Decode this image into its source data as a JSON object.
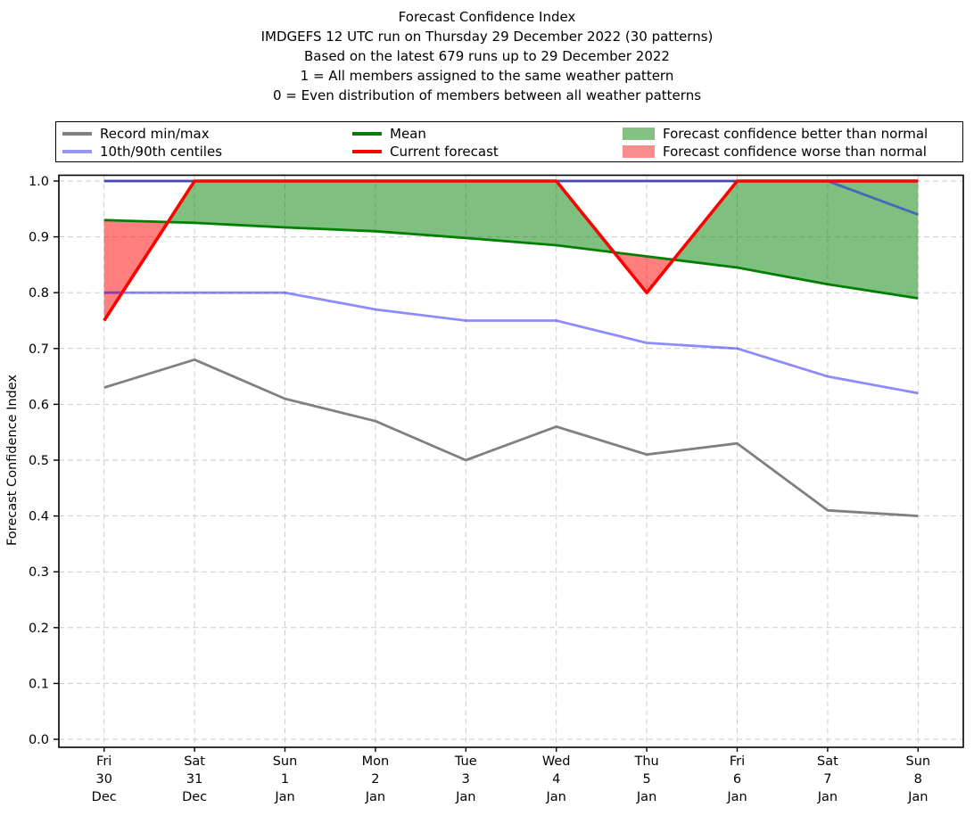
{
  "chart_data": {
    "type": "line",
    "title": "Forecast Confidence Index",
    "subtitle_lines": [
      "IMDGEFS 12 UTC run on Thursday 29 December 2022 (30 patterns)",
      "Based on the latest 679 runs up to 29 December 2022",
      "1 = All members assigned to the same weather pattern",
      "0 = Even distribution of members between all weather patterns"
    ],
    "xlabel": "",
    "ylabel": "Forecast Confidence Index",
    "ylim": [
      0.0,
      1.01
    ],
    "grid": true,
    "yticks": [
      "0.0",
      "0.1",
      "0.2",
      "0.3",
      "0.4",
      "0.5",
      "0.6",
      "0.7",
      "0.8",
      "0.9",
      "1.0"
    ],
    "x_categories": [
      {
        "day": "Fri",
        "date": "30",
        "month": "Dec"
      },
      {
        "day": "Sat",
        "date": "31",
        "month": "Dec"
      },
      {
        "day": "Sun",
        "date": "1",
        "month": "Jan"
      },
      {
        "day": "Mon",
        "date": "2",
        "month": "Jan"
      },
      {
        "day": "Tue",
        "date": "3",
        "month": "Jan"
      },
      {
        "day": "Wed",
        "date": "4",
        "month": "Jan"
      },
      {
        "day": "Thu",
        "date": "5",
        "month": "Jan"
      },
      {
        "day": "Fri",
        "date": "6",
        "month": "Jan"
      },
      {
        "day": "Sat",
        "date": "7",
        "month": "Jan"
      },
      {
        "day": "Sun",
        "date": "8",
        "month": "Jan"
      }
    ],
    "series": [
      {
        "name": "record-max",
        "legend": "Record min/max",
        "color": "#808080",
        "width": 2.8,
        "alpha": 1,
        "values": [
          1.0,
          1.0,
          1.0,
          1.0,
          1.0,
          1.0,
          1.0,
          1.0,
          1.0,
          1.0
        ]
      },
      {
        "name": "record-min",
        "legend": "Record min/max",
        "color": "#808080",
        "width": 2.8,
        "alpha": 1,
        "values": [
          0.63,
          0.68,
          0.61,
          0.57,
          0.5,
          0.56,
          0.51,
          0.53,
          0.41,
          0.4
        ]
      },
      {
        "name": "centile-10th",
        "legend": "10th/90th centiles",
        "color": "#0000ff",
        "width": 2.8,
        "alpha": 0.45,
        "values": [
          0.8,
          0.8,
          0.8,
          0.77,
          0.75,
          0.75,
          0.71,
          0.7,
          0.65,
          0.62
        ]
      },
      {
        "name": "centile-90th",
        "legend": "10th/90th centiles",
        "color": "#0000ff",
        "width": 2.8,
        "alpha": 0.45,
        "values": [
          1.0,
          1.0,
          1.0,
          1.0,
          1.0,
          1.0,
          1.0,
          1.0,
          1.0,
          0.94
        ]
      },
      {
        "name": "mean",
        "legend": "Mean",
        "color": "#008000",
        "width": 2.8,
        "alpha": 1,
        "values": [
          0.93,
          0.925,
          0.917,
          0.91,
          0.898,
          0.885,
          0.865,
          0.845,
          0.815,
          0.79
        ]
      },
      {
        "name": "current-forecast",
        "legend": "Current forecast",
        "color": "#ff0000",
        "width": 3.6,
        "alpha": 1,
        "values": [
          0.75,
          1.0,
          1.0,
          1.0,
          1.0,
          1.0,
          0.8,
          1.0,
          1.0,
          1.0
        ]
      }
    ],
    "fill_between": {
      "upper": "current-forecast",
      "lower": "mean",
      "positive_color": "rgba(0,128,0,0.5)",
      "negative_color": "rgba(255,0,0,0.5)",
      "positive_label": "Forecast confidence better than normal",
      "negative_label": "Forecast confidence worse than normal"
    },
    "legend": {
      "position": "top",
      "items": [
        {
          "label": "Record min/max",
          "swatch": "line",
          "color": "#808080"
        },
        {
          "label": "10th/90th centiles",
          "swatch": "line",
          "color": "#9595f2"
        },
        {
          "label": "Mean",
          "swatch": "line",
          "color": "#008000"
        },
        {
          "label": "Current forecast",
          "swatch": "line",
          "color": "#ff0000"
        },
        {
          "label": "Forecast confidence better than normal",
          "swatch": "patch",
          "color": "#84c284"
        },
        {
          "label": "Forecast confidence worse than normal",
          "swatch": "patch",
          "color": "#fb8c8c"
        }
      ]
    }
  }
}
